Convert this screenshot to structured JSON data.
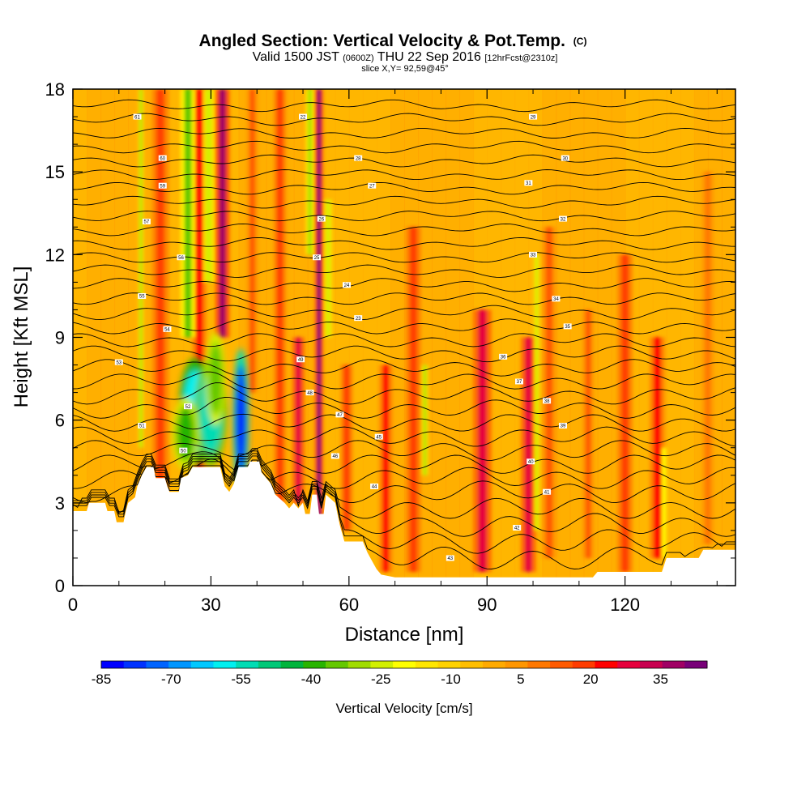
{
  "chart_data": {
    "type": "heatmap",
    "title": "Angled Section: Vertical Velocity & Pot.Temp.",
    "title_unit": "(C)",
    "subtitle": {
      "valid_text": "Valid 1500 JST",
      "zulu_text": "(0600Z)",
      "date_text": "THU 22 Sep 2016",
      "forecast_text": "[12hrFcst@2310z]"
    },
    "slice_label": "slice X,Y= 92,59@45°",
    "xlabel": "Distance [nm]",
    "ylabel": "Height [Kft MSL]",
    "xlim": [
      0,
      144
    ],
    "ylim": [
      0,
      18
    ],
    "x_ticks": [
      0,
      30,
      60,
      90,
      120
    ],
    "y_ticks": [
      0,
      3,
      6,
      9,
      12,
      15,
      18
    ],
    "x_tick_labels": [
      "0",
      "30",
      "60",
      "90",
      "120"
    ],
    "y_tick_labels": [
      "0",
      "3",
      "6",
      "9",
      "12",
      "15",
      "18"
    ],
    "colorbar": {
      "label": "Vertical Velocity [cm/s]",
      "tick_labels": [
        "-85",
        "-70",
        "-55",
        "-40",
        "-25",
        "-10",
        "5",
        "20",
        "35"
      ],
      "tick_values": [
        -85,
        -70,
        -55,
        -40,
        -25,
        -10,
        5,
        20,
        35
      ],
      "range": [
        -85,
        45
      ],
      "step": 5,
      "colors": [
        "#0000ff",
        "#0032ff",
        "#0064ff",
        "#0096ff",
        "#00c8ff",
        "#00f0f0",
        "#00dcb4",
        "#00c878",
        "#00b43c",
        "#28b400",
        "#64c800",
        "#a0dc00",
        "#d2f000",
        "#ffff00",
        "#ffe600",
        "#ffd200",
        "#ffbe00",
        "#ffaa00",
        "#ff9600",
        "#ff7800",
        "#ff5a00",
        "#ff3c00",
        "#ff0000",
        "#e6003c",
        "#c80050",
        "#a00064",
        "#780078"
      ]
    },
    "terrain_profile_kft": [
      [
        0,
        2.7
      ],
      [
        3,
        2.7
      ],
      [
        3.5,
        3.0
      ],
      [
        7,
        3.0
      ],
      [
        7.5,
        2.7
      ],
      [
        9,
        2.7
      ],
      [
        9.5,
        2.3
      ],
      [
        11,
        2.3
      ],
      [
        11.5,
        2.7
      ],
      [
        12,
        3.0
      ],
      [
        13.5,
        3.2
      ],
      [
        14,
        3.6
      ],
      [
        15,
        4.0
      ],
      [
        16,
        4.3
      ],
      [
        17.5,
        4.3
      ],
      [
        18,
        3.9
      ],
      [
        20,
        3.9
      ],
      [
        20.5,
        3.6
      ],
      [
        21,
        3.4
      ],
      [
        23,
        3.4
      ],
      [
        23.5,
        3.9
      ],
      [
        25,
        4.0
      ],
      [
        26,
        4.3
      ],
      [
        32,
        4.3
      ],
      [
        33,
        3.6
      ],
      [
        34,
        3.4
      ],
      [
        35,
        3.7
      ],
      [
        36,
        4.3
      ],
      [
        38,
        4.3
      ],
      [
        38.5,
        4.5
      ],
      [
        40.5,
        4.5
      ],
      [
        41,
        4.1
      ],
      [
        42,
        3.9
      ],
      [
        43,
        3.7
      ],
      [
        44,
        3.3
      ],
      [
        46,
        3.0
      ],
      [
        47,
        2.8
      ],
      [
        48,
        3.0
      ],
      [
        49,
        2.8
      ],
      [
        50,
        3.0
      ],
      [
        50.5,
        2.6
      ],
      [
        51.5,
        2.6
      ],
      [
        52,
        3.3
      ],
      [
        53,
        3.3
      ],
      [
        53.5,
        2.6
      ],
      [
        54.5,
        2.6
      ],
      [
        55,
        3.3
      ],
      [
        57,
        3.0
      ],
      [
        58,
        2.2
      ],
      [
        59,
        1.6
      ],
      [
        63,
        1.6
      ],
      [
        64,
        1.2
      ],
      [
        65,
        0.9
      ],
      [
        66,
        0.6
      ],
      [
        67,
        0.4
      ],
      [
        70,
        0.3
      ],
      [
        90,
        0.3
      ],
      [
        113,
        0.3
      ],
      [
        114,
        0.5
      ],
      [
        120,
        0.5
      ],
      [
        128,
        0.5
      ],
      [
        129,
        1.0
      ],
      [
        136,
        1.0
      ],
      [
        137,
        1.3
      ],
      [
        144,
        1.3
      ]
    ],
    "theta_contours": {
      "interval_c": 1,
      "base_levels_kft": [
        1.0,
        1.6,
        2.2,
        2.8,
        3.4,
        3.9,
        4.4,
        4.9,
        5.4,
        5.9,
        6.4,
        6.9,
        7.4,
        7.9,
        8.4,
        8.9,
        9.4,
        9.9,
        10.4,
        10.9,
        11.4,
        11.9,
        12.4,
        12.9,
        13.4,
        13.9,
        14.4,
        14.9,
        15.4,
        15.9,
        16.4,
        16.9,
        17.4
      ]
    },
    "updraft_bands": [
      {
        "x": 19,
        "w": 1.6,
        "value": 22,
        "top": 18,
        "bottom": 3
      },
      {
        "x": 27.5,
        "w": 1.4,
        "value": 25,
        "top": 18,
        "bottom": 3
      },
      {
        "x": 32.5,
        "w": 1.4,
        "value": 40,
        "top": 18,
        "bottom": 9
      },
      {
        "x": 39,
        "w": 1.2,
        "value": 18,
        "top": 18,
        "bottom": 7
      },
      {
        "x": 45,
        "w": 1.2,
        "value": 20,
        "top": 18,
        "bottom": 3
      },
      {
        "x": 49,
        "w": 1.2,
        "value": 30,
        "top": 9,
        "bottom": 3
      },
      {
        "x": 53.5,
        "w": 0.8,
        "value": 45,
        "top": 18,
        "bottom": 2.5
      },
      {
        "x": 59.5,
        "w": 1.2,
        "value": 20,
        "top": 8,
        "bottom": 2
      },
      {
        "x": 68,
        "w": 1.3,
        "value": 25,
        "top": 8,
        "bottom": 0.5
      },
      {
        "x": 74,
        "w": 1.5,
        "value": 22,
        "top": 13,
        "bottom": 0.5
      },
      {
        "x": 89,
        "w": 1.8,
        "value": 30,
        "top": 10,
        "bottom": 0.5
      },
      {
        "x": 99,
        "w": 1.5,
        "value": 32,
        "top": 9,
        "bottom": 0.5
      },
      {
        "x": 103.5,
        "w": 1.5,
        "value": 18,
        "top": 13,
        "bottom": 1
      },
      {
        "x": 112,
        "w": 1.2,
        "value": 15,
        "top": 10,
        "bottom": 1
      },
      {
        "x": 120,
        "w": 1.5,
        "value": 20,
        "top": 12,
        "bottom": 0.5
      },
      {
        "x": 127,
        "w": 1.5,
        "value": 25,
        "top": 9,
        "bottom": 1
      },
      {
        "x": 138,
        "w": 1.2,
        "value": 10,
        "top": 15,
        "bottom": 1.5
      }
    ],
    "downdraft_bands": [
      {
        "x": 14.8,
        "w": 0.5,
        "value": -30,
        "top": 18,
        "bottom": 5
      },
      {
        "x": 25,
        "w": 1.5,
        "value": -35,
        "top": 18,
        "bottom": 9
      },
      {
        "x": 29.5,
        "w": 1.2,
        "value": -25,
        "top": 18,
        "bottom": 11
      },
      {
        "x": 51.5,
        "w": 0.8,
        "value": -30,
        "top": 18,
        "bottom": 12
      },
      {
        "x": 55.5,
        "w": 0.8,
        "value": -25,
        "top": 14,
        "bottom": 9
      },
      {
        "x": 76.5,
        "w": 0.6,
        "value": -28,
        "top": 8,
        "bottom": 4
      },
      {
        "x": 100.8,
        "w": 0.6,
        "value": -25,
        "top": 12,
        "bottom": 2
      },
      {
        "x": 128.5,
        "w": 0.6,
        "value": -20,
        "top": 5,
        "bottom": 1
      }
    ],
    "downdraft_cores": [
      {
        "x": 26.5,
        "y": 6.3,
        "rx": 2.5,
        "ry": 1.5,
        "value": -60
      },
      {
        "x": 30,
        "y": 6.3,
        "rx": 2.5,
        "ry": 1.5,
        "value": -55
      },
      {
        "x": 36.5,
        "y": 6.0,
        "rx": 1.2,
        "ry": 2.0,
        "value": -85
      },
      {
        "x": 24.5,
        "y": 5.5,
        "rx": 2.0,
        "ry": 1.0,
        "value": -40
      },
      {
        "x": 31,
        "y": 7.5,
        "rx": 1.5,
        "ry": 1.3,
        "value": -35
      }
    ],
    "contour_labels": [
      {
        "x": 14,
        "y": 17.0,
        "text": "61"
      },
      {
        "x": 19.5,
        "y": 15.5,
        "text": "60"
      },
      {
        "x": 19.5,
        "y": 14.5,
        "text": "59"
      },
      {
        "x": 16,
        "y": 13.2,
        "text": "57"
      },
      {
        "x": 23.5,
        "y": 11.9,
        "text": "56"
      },
      {
        "x": 15,
        "y": 10.5,
        "text": "55"
      },
      {
        "x": 20.5,
        "y": 9.3,
        "text": "54"
      },
      {
        "x": 10,
        "y": 8.1,
        "text": "53"
      },
      {
        "x": 25,
        "y": 6.5,
        "text": "52"
      },
      {
        "x": 15,
        "y": 5.8,
        "text": "51"
      },
      {
        "x": 24,
        "y": 4.9,
        "text": "50"
      },
      {
        "x": 49.5,
        "y": 8.2,
        "text": "49"
      },
      {
        "x": 51.5,
        "y": 7.0,
        "text": "48"
      },
      {
        "x": 58,
        "y": 6.2,
        "text": "47"
      },
      {
        "x": 57,
        "y": 4.7,
        "text": "46"
      },
      {
        "x": 66.5,
        "y": 5.4,
        "text": "45"
      },
      {
        "x": 65.5,
        "y": 3.6,
        "text": "44"
      },
      {
        "x": 82,
        "y": 1.0,
        "text": "43"
      },
      {
        "x": 96.5,
        "y": 2.1,
        "text": "42"
      },
      {
        "x": 103,
        "y": 3.4,
        "text": "41"
      },
      {
        "x": 99.5,
        "y": 4.5,
        "text": "40"
      },
      {
        "x": 106.5,
        "y": 5.8,
        "text": "39"
      },
      {
        "x": 103,
        "y": 6.7,
        "text": "38"
      },
      {
        "x": 97,
        "y": 7.4,
        "text": "37"
      },
      {
        "x": 93.5,
        "y": 8.3,
        "text": "36"
      },
      {
        "x": 107.5,
        "y": 9.4,
        "text": "35"
      },
      {
        "x": 105,
        "y": 10.4,
        "text": "34"
      },
      {
        "x": 100,
        "y": 12.0,
        "text": "33"
      },
      {
        "x": 106.5,
        "y": 13.3,
        "text": "32"
      },
      {
        "x": 99,
        "y": 14.6,
        "text": "31"
      },
      {
        "x": 107,
        "y": 15.5,
        "text": "30"
      },
      {
        "x": 100,
        "y": 17.0,
        "text": "29"
      },
      {
        "x": 62,
        "y": 15.5,
        "text": "28"
      },
      {
        "x": 65,
        "y": 14.5,
        "text": "27"
      },
      {
        "x": 54,
        "y": 13.3,
        "text": "26"
      },
      {
        "x": 53,
        "y": 11.9,
        "text": "25"
      },
      {
        "x": 59.5,
        "y": 10.9,
        "text": "24"
      },
      {
        "x": 62,
        "y": 9.7,
        "text": "23"
      },
      {
        "x": 50,
        "y": 17.0,
        "text": "22"
      }
    ]
  }
}
